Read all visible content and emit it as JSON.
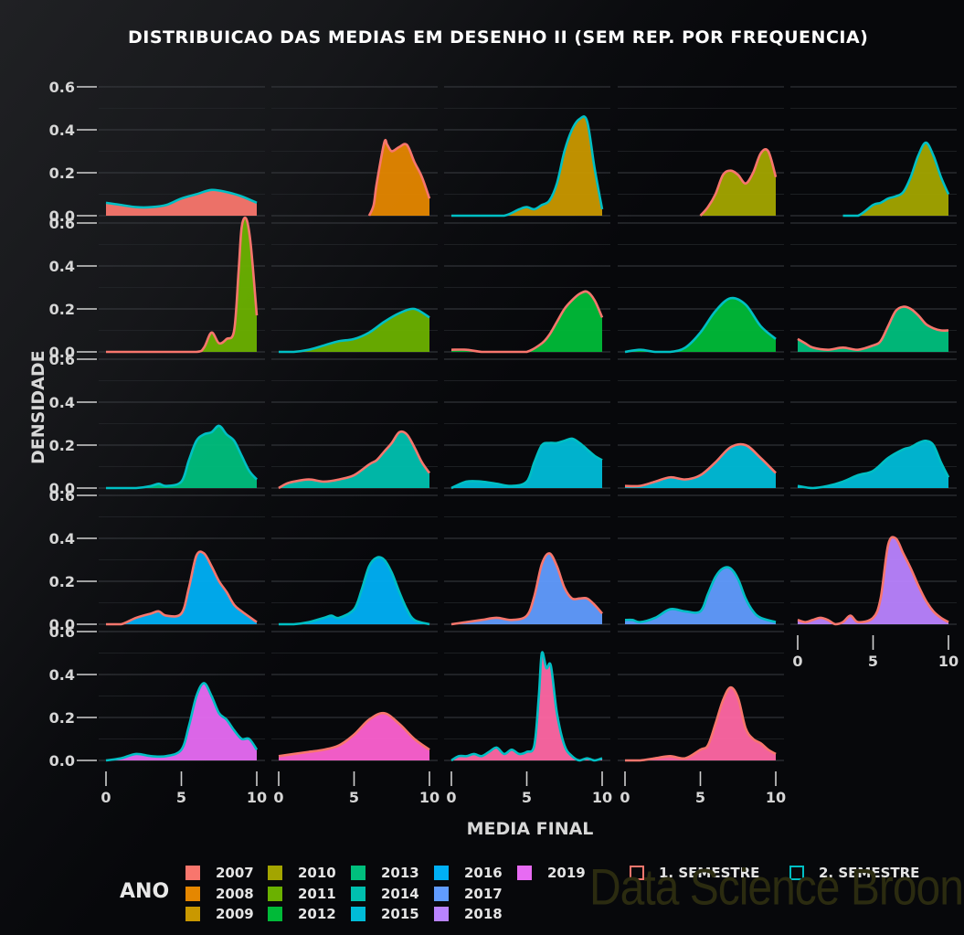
{
  "title": "DISTRIBUICAO DAS MEDIAS EM DESENHO II (SEM REP. POR FREQUENCIA)",
  "watermark": "Data Science Broon",
  "colors": {
    "2007": "#F8766D",
    "2008": "#E58700",
    "2009": "#C99800",
    "2010": "#A3A500",
    "2011": "#6BB100",
    "2012": "#00BA38",
    "2013": "#00BF7D",
    "2014": "#00C0AF",
    "2015": "#00BCD8",
    "2016": "#00B0F6",
    "2017": "#619CFF",
    "2018": "#B983FF",
    "2019": "#E76BF3",
    "2020": "#FD61D1",
    "2021": "#FF67A4",
    "sem1": "#F8766D",
    "sem2": "#00BFC4"
  },
  "legend": {
    "title": "ANO",
    "years": [
      "2007",
      "2008",
      "2009",
      "2010",
      "2011",
      "2012",
      "2013",
      "2014",
      "2015",
      "2016",
      "2017",
      "2018",
      "2019"
    ],
    "semesters": [
      "1. SEMESTRE",
      "2. SEMESTRE"
    ]
  },
  "chart_data": {
    "type": "area",
    "title": "DISTRIBUICAO DAS MEDIAS EM DESENHO II (SEM REP. POR FREQUENCIA)",
    "xlabel": "MEDIA FINAL",
    "ylabel": "DENSIDADE",
    "xlim": [
      0,
      10
    ],
    "ylim": [
      0,
      0.6
    ],
    "x_ticks": [
      "0",
      "5",
      "10"
    ],
    "y_ticks": [
      "0.0",
      "0.2",
      "0.4",
      "0.6"
    ],
    "grid": true,
    "facets": [
      {
        "fill": "2007",
        "stroke": "sem2",
        "x": [
          0,
          1,
          2,
          3,
          4,
          5,
          6,
          7,
          8,
          9,
          10
        ],
        "y": [
          0.06,
          0.05,
          0.04,
          0.04,
          0.05,
          0.08,
          0.1,
          0.12,
          0.11,
          0.09,
          0.06
        ]
      },
      {
        "fill": "2008",
        "stroke": "sem1",
        "x": [
          6,
          6.3,
          6.5,
          7,
          7.2,
          7.5,
          8,
          8.5,
          9,
          9.5,
          10
        ],
        "y": [
          0,
          0.05,
          0.15,
          0.34,
          0.33,
          0.3,
          0.32,
          0.33,
          0.25,
          0.18,
          0.08
        ]
      },
      {
        "fill": "2009",
        "stroke": "sem2",
        "x": [
          0,
          2,
          3.5,
          4.5,
          5,
          5.5,
          6,
          6.5,
          7,
          7.5,
          8,
          8.5,
          9,
          9.5,
          10
        ],
        "y": [
          0,
          0,
          0,
          0.03,
          0.04,
          0.03,
          0.05,
          0.07,
          0.15,
          0.3,
          0.4,
          0.45,
          0.44,
          0.22,
          0.03
        ]
      },
      {
        "fill": "2010",
        "stroke": "sem1",
        "x": [
          5,
          5.5,
          6,
          6.5,
          7,
          7.5,
          8,
          8.5,
          9,
          9.5,
          10
        ],
        "y": [
          0,
          0.04,
          0.1,
          0.19,
          0.21,
          0.19,
          0.15,
          0.2,
          0.29,
          0.3,
          0.18
        ]
      },
      {
        "fill": "2010",
        "stroke": "sem2",
        "x": [
          3,
          4,
          5,
          5.5,
          6,
          6.5,
          7,
          7.5,
          8,
          8.5,
          9,
          9.5,
          10
        ],
        "y": [
          0,
          0,
          0.05,
          0.06,
          0.08,
          0.09,
          0.11,
          0.18,
          0.28,
          0.34,
          0.28,
          0.18,
          0.1
        ]
      },
      {
        "fill": "2011",
        "stroke": "sem1",
        "x": [
          0,
          2,
          4,
          6,
          6.5,
          7,
          7.5,
          8,
          8.5,
          8.8,
          9,
          9.3,
          9.6,
          10
        ],
        "y": [
          0,
          0,
          0,
          0,
          0.02,
          0.09,
          0.04,
          0.06,
          0.1,
          0.38,
          0.58,
          0.62,
          0.5,
          0.17
        ]
      },
      {
        "fill": "2011",
        "stroke": "sem2",
        "x": [
          0,
          1,
          2,
          3,
          4,
          5,
          6,
          7,
          8,
          9,
          10
        ],
        "y": [
          0,
          0,
          0.01,
          0.03,
          0.05,
          0.06,
          0.09,
          0.14,
          0.18,
          0.2,
          0.16
        ]
      },
      {
        "fill": "2012",
        "stroke": "sem1",
        "x": [
          0,
          1,
          2,
          3,
          4,
          5,
          6,
          6.5,
          7,
          7.5,
          8,
          8.5,
          9,
          9.5,
          10
        ],
        "y": [
          0.01,
          0.01,
          0,
          0,
          0,
          0,
          0.04,
          0.08,
          0.14,
          0.2,
          0.24,
          0.27,
          0.28,
          0.24,
          0.16
        ]
      },
      {
        "fill": "2012",
        "stroke": "sem2",
        "x": [
          0,
          1,
          2,
          3,
          4,
          5,
          6,
          7,
          8,
          9,
          10
        ],
        "y": [
          0,
          0.01,
          0,
          0,
          0.02,
          0.09,
          0.19,
          0.25,
          0.22,
          0.12,
          0.06
        ]
      },
      {
        "fill": "2013",
        "stroke": "sem1",
        "x": [
          0,
          0.5,
          1,
          2,
          3,
          4,
          5,
          5.5,
          6,
          6.5,
          7,
          7.5,
          8,
          8.5,
          9,
          9.5,
          10
        ],
        "y": [
          0.06,
          0.04,
          0.02,
          0.01,
          0.02,
          0.01,
          0.03,
          0.05,
          0.12,
          0.19,
          0.21,
          0.2,
          0.17,
          0.13,
          0.11,
          0.1,
          0.1
        ]
      },
      {
        "fill": "2013",
        "stroke": "sem2",
        "x": [
          0,
          2,
          3,
          3.5,
          4,
          5,
          5.5,
          6,
          6.5,
          7,
          7.5,
          8,
          8.5,
          9,
          9.5,
          10
        ],
        "y": [
          0,
          0,
          0.01,
          0.02,
          0.01,
          0.03,
          0.13,
          0.22,
          0.25,
          0.26,
          0.29,
          0.25,
          0.22,
          0.15,
          0.08,
          0.04
        ]
      },
      {
        "fill": "2014",
        "stroke": "sem1",
        "x": [
          0,
          0.5,
          1,
          2,
          3,
          4,
          5,
          6,
          6.5,
          7,
          7.5,
          8,
          8.5,
          9,
          9.5,
          10
        ],
        "y": [
          0,
          0.02,
          0.03,
          0.04,
          0.03,
          0.04,
          0.06,
          0.11,
          0.13,
          0.17,
          0.21,
          0.26,
          0.25,
          0.19,
          0.12,
          0.07
        ]
      },
      {
        "fill": "2015",
        "stroke": "sem2",
        "x": [
          0,
          1,
          2,
          3,
          4,
          5,
          5.5,
          6,
          6.5,
          7,
          7.5,
          8,
          8.5,
          9,
          9.5,
          10
        ],
        "y": [
          0,
          0.03,
          0.03,
          0.02,
          0.01,
          0.03,
          0.12,
          0.2,
          0.21,
          0.21,
          0.22,
          0.23,
          0.21,
          0.18,
          0.15,
          0.13
        ]
      },
      {
        "fill": "2015",
        "stroke": "sem1",
        "x": [
          0,
          1,
          2,
          3,
          4,
          5,
          6,
          7,
          8,
          9,
          10
        ],
        "y": [
          0.01,
          0.01,
          0.03,
          0.05,
          0.04,
          0.06,
          0.12,
          0.19,
          0.2,
          0.14,
          0.07
        ]
      },
      {
        "fill": "2015",
        "stroke": "sem2",
        "x": [
          0,
          1,
          2,
          3,
          4,
          5,
          6,
          7,
          7.5,
          8,
          8.5,
          9,
          9.5,
          10
        ],
        "y": [
          0.01,
          0,
          0.01,
          0.03,
          0.06,
          0.08,
          0.14,
          0.18,
          0.19,
          0.21,
          0.22,
          0.2,
          0.12,
          0.05
        ]
      },
      {
        "fill": "2016",
        "stroke": "sem1",
        "x": [
          0,
          1,
          2,
          3,
          3.5,
          4,
          5,
          5.5,
          6,
          6.5,
          7,
          7.5,
          8,
          8.5,
          9,
          10
        ],
        "y": [
          0,
          0,
          0.03,
          0.05,
          0.06,
          0.04,
          0.05,
          0.17,
          0.32,
          0.33,
          0.27,
          0.2,
          0.15,
          0.09,
          0.06,
          0.01
        ]
      },
      {
        "fill": "2016",
        "stroke": "sem2",
        "x": [
          0,
          1,
          2,
          3,
          3.5,
          4,
          5,
          5.5,
          6,
          6.5,
          7,
          7.5,
          8,
          8.5,
          9,
          10
        ],
        "y": [
          0,
          0,
          0.01,
          0.03,
          0.04,
          0.03,
          0.07,
          0.16,
          0.27,
          0.31,
          0.3,
          0.24,
          0.15,
          0.07,
          0.02,
          0
        ]
      },
      {
        "fill": "2017",
        "stroke": "sem1",
        "x": [
          0,
          1,
          2,
          3,
          4,
          5,
          5.5,
          6,
          6.5,
          7,
          7.5,
          8,
          8.5,
          9,
          9.5,
          10
        ],
        "y": [
          0,
          0.01,
          0.02,
          0.03,
          0.02,
          0.04,
          0.13,
          0.28,
          0.33,
          0.27,
          0.17,
          0.12,
          0.12,
          0.12,
          0.09,
          0.05
        ]
      },
      {
        "fill": "2017",
        "stroke": "sem2",
        "x": [
          0,
          0.5,
          1,
          2,
          3,
          4,
          5,
          5.5,
          6,
          6.5,
          7,
          7.5,
          8,
          8.5,
          9,
          10
        ],
        "y": [
          0.02,
          0.02,
          0.01,
          0.03,
          0.07,
          0.06,
          0.06,
          0.14,
          0.22,
          0.26,
          0.26,
          0.21,
          0.12,
          0.06,
          0.03,
          0.01
        ]
      },
      {
        "fill": "2018",
        "stroke": "sem1",
        "x": [
          0,
          0.5,
          1,
          1.5,
          2,
          2.5,
          3,
          3.5,
          4,
          5,
          5.5,
          6,
          6.5,
          7,
          7.5,
          8,
          8.5,
          9,
          9.5,
          10
        ],
        "y": [
          0.02,
          0.01,
          0.02,
          0.03,
          0.02,
          0,
          0.01,
          0.04,
          0.01,
          0.03,
          0.12,
          0.37,
          0.4,
          0.33,
          0.26,
          0.18,
          0.11,
          0.06,
          0.03,
          0.01
        ]
      },
      {
        "fill": "2019",
        "stroke": "sem2",
        "x": [
          0,
          1,
          2,
          3,
          4,
          5,
          5.5,
          6,
          6.5,
          7,
          7.5,
          8,
          8.5,
          9,
          9.5,
          10
        ],
        "y": [
          0,
          0.01,
          0.03,
          0.02,
          0.02,
          0.05,
          0.16,
          0.3,
          0.36,
          0.3,
          0.22,
          0.19,
          0.14,
          0.1,
          0.1,
          0.05
        ]
      },
      {
        "fill": "2020",
        "stroke": "sem1",
        "x": [
          0,
          1,
          2,
          3,
          4,
          5,
          6,
          7,
          8,
          9,
          10
        ],
        "y": [
          0.02,
          0.03,
          0.04,
          0.05,
          0.07,
          0.12,
          0.19,
          0.22,
          0.17,
          0.1,
          0.05
        ]
      },
      {
        "fill": "2021",
        "stroke": "sem2",
        "x": [
          0,
          0.5,
          1,
          1.5,
          2,
          2.5,
          3,
          3.5,
          4,
          4.5,
          5,
          5.5,
          5.8,
          6,
          6.3,
          6.6,
          7,
          7.5,
          8,
          8.5,
          9,
          9.5,
          10
        ],
        "y": [
          0,
          0.02,
          0.02,
          0.03,
          0.02,
          0.04,
          0.06,
          0.03,
          0.05,
          0.03,
          0.04,
          0.07,
          0.3,
          0.5,
          0.43,
          0.44,
          0.22,
          0.07,
          0.02,
          0,
          0.01,
          0,
          0.01
        ]
      },
      {
        "fill": "2021",
        "stroke": "sem1",
        "x": [
          0,
          1,
          2,
          3,
          4,
          5,
          5.5,
          6,
          6.5,
          7,
          7.5,
          8,
          8.5,
          9,
          9.5,
          10
        ],
        "y": [
          0,
          0,
          0.01,
          0.02,
          0.01,
          0.05,
          0.07,
          0.17,
          0.28,
          0.34,
          0.29,
          0.15,
          0.1,
          0.08,
          0.05,
          0.03
        ]
      }
    ]
  }
}
